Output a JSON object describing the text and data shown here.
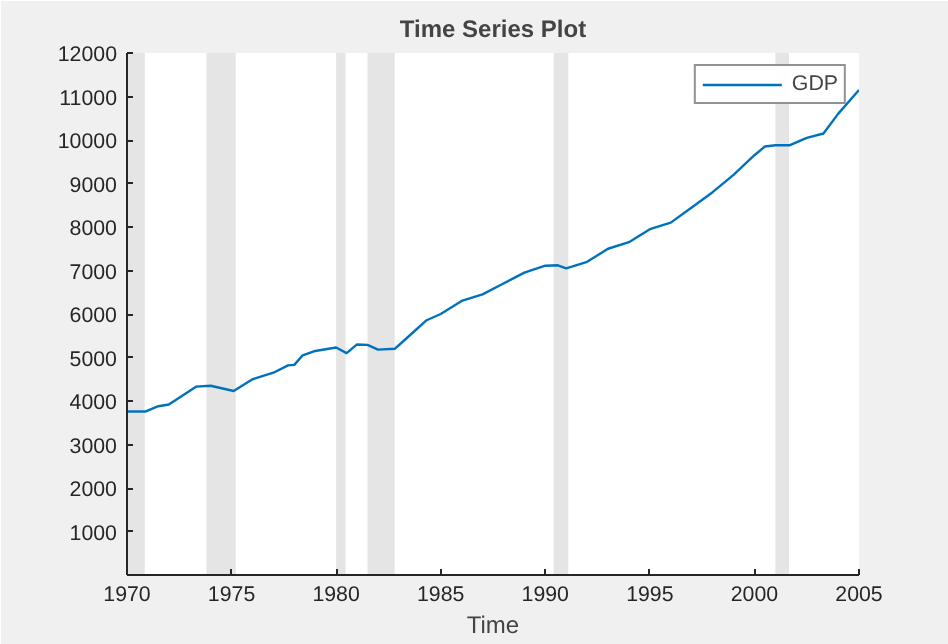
{
  "chart_data": {
    "type": "line",
    "title": "Time Series Plot",
    "xlabel": "Time",
    "xlim": [
      1970,
      2005
    ],
    "xticks": [
      1970,
      1975,
      1980,
      1985,
      1990,
      1995,
      2000,
      2005
    ],
    "ylim": [
      0,
      12000
    ],
    "yticks": [
      1000,
      2000,
      3000,
      4000,
      5000,
      6000,
      7000,
      8000,
      9000,
      10000,
      11000,
      12000
    ],
    "x": [
      1970,
      1970.9,
      1971.5,
      1972,
      1973.3,
      1974,
      1975.1,
      1976,
      1977,
      1977.7,
      1978,
      1978.4,
      1979,
      1980,
      1980.5,
      1981,
      1981.5,
      1982,
      1982.8,
      1983.5,
      1984.3,
      1985,
      1986,
      1987,
      1988,
      1989,
      1990,
      1990.6,
      1991,
      1992,
      1993,
      1994,
      1995,
      1996,
      1997,
      1998,
      1999,
      2000,
      2000.5,
      2001,
      2001.7,
      2002.5,
      2003.3,
      2004,
      2005
    ],
    "series": [
      {
        "name": "GDP",
        "color": "#0072bd",
        "values": [
          3760,
          3760,
          3880,
          3920,
          4330,
          4350,
          4230,
          4500,
          4650,
          4820,
          4830,
          5050,
          5150,
          5230,
          5100,
          5300,
          5290,
          5180,
          5200,
          5500,
          5850,
          6000,
          6300,
          6450,
          6700,
          6950,
          7110,
          7120,
          7050,
          7200,
          7500,
          7650,
          7950,
          8100,
          8450,
          8800,
          9200,
          9650,
          9850,
          9880,
          9880,
          10050,
          10150,
          10600,
          11150
        ]
      }
    ],
    "bands": [
      {
        "axis": "x",
        "from": 1970,
        "to": 1970.85,
        "color": "#e5e5e5"
      },
      {
        "axis": "x",
        "from": 1973.8,
        "to": 1975.2,
        "color": "#e5e5e5"
      },
      {
        "axis": "x",
        "from": 1980.0,
        "to": 1980.45,
        "color": "#e5e5e5"
      },
      {
        "axis": "x",
        "from": 1981.5,
        "to": 1982.8,
        "color": "#e5e5e5"
      },
      {
        "axis": "x",
        "from": 1990.4,
        "to": 1991.1,
        "color": "#e5e5e5"
      },
      {
        "axis": "x",
        "from": 2001.0,
        "to": 2001.65,
        "color": "#e5e5e5"
      }
    ],
    "grid": false,
    "legend": "top right"
  }
}
